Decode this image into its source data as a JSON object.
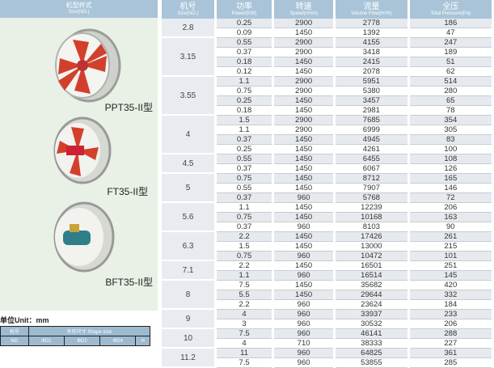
{
  "left": {
    "header_cn": "机型样式",
    "header_en": "Size(NO.)",
    "models": [
      {
        "label": "PPT35-II型"
      },
      {
        "label": "FT35-II型"
      },
      {
        "label": "BFT35-II型"
      }
    ],
    "unit": "单位Unit：mm",
    "shape_table": {
      "col1_cn": "机号",
      "shape_label": "外形尺寸 Shape size",
      "headers": [
        "NO",
        "ΦD1",
        "ΦD2",
        "ΦD4",
        "H"
      ]
    }
  },
  "table": {
    "headers": [
      {
        "cn": "机号",
        "en": "Size(NO.)"
      },
      {
        "cn": "功率",
        "en": "Power(KW)"
      },
      {
        "cn": "转速",
        "en": "Speed(r/min)"
      },
      {
        "cn": "流量",
        "en": "Volume Flow(m³/h)"
      },
      {
        "cn": "全压",
        "en": "Total Pressure(Pa)"
      }
    ],
    "groups": [
      {
        "size": "2.8",
        "rows": [
          [
            "0.25",
            "2900",
            "2778",
            "186"
          ],
          [
            "0.09",
            "1450",
            "1392",
            "47"
          ]
        ]
      },
      {
        "size": "3.15",
        "rows": [
          [
            "0.55",
            "2900",
            "4155",
            "247"
          ],
          [
            "0.37",
            "2900",
            "3418",
            "189"
          ],
          [
            "0.18",
            "1450",
            "2415",
            "51"
          ],
          [
            "0.12",
            "1450",
            "2078",
            "62"
          ]
        ]
      },
      {
        "size": "3.55",
        "rows": [
          [
            "1.1",
            "2900",
            "5951",
            "514"
          ],
          [
            "0.75",
            "2900",
            "5380",
            "280"
          ],
          [
            "0.25",
            "1450",
            "3457",
            "65"
          ],
          [
            "0.18",
            "1450",
            "2981",
            "78"
          ]
        ]
      },
      {
        "size": "4",
        "rows": [
          [
            "1.5",
            "2900",
            "7685",
            "354"
          ],
          [
            "1.1",
            "2900",
            "6999",
            "305"
          ],
          [
            "0.37",
            "1450",
            "4945",
            "83"
          ],
          [
            "0.25",
            "1450",
            "4261",
            "100"
          ]
        ]
      },
      {
        "size": "4.5",
        "rows": [
          [
            "0.55",
            "1450",
            "6455",
            "108"
          ],
          [
            "0.37",
            "1450",
            "6067",
            "126"
          ]
        ]
      },
      {
        "size": "5",
        "rows": [
          [
            "0.75",
            "1450",
            "8712",
            "165"
          ],
          [
            "0.55",
            "1450",
            "7907",
            "146"
          ],
          [
            "0.37",
            "960",
            "5768",
            "72"
          ]
        ]
      },
      {
        "size": "5.6",
        "rows": [
          [
            "1.1",
            "1450",
            "12239",
            "206"
          ],
          [
            "0.75",
            "1450",
            "10168",
            "163"
          ],
          [
            "0.37",
            "960",
            "8103",
            "90"
          ]
        ]
      },
      {
        "size": "6.3",
        "rows": [
          [
            "2.2",
            "1450",
            "17426",
            "261"
          ],
          [
            "1.5",
            "1450",
            "13000",
            "215"
          ],
          [
            "0.75",
            "960",
            "10472",
            "101"
          ]
        ]
      },
      {
        "size": "7.1",
        "rows": [
          [
            "2.2",
            "1450",
            "16501",
            "251"
          ],
          [
            "1.1",
            "960",
            "16514",
            "145"
          ]
        ]
      },
      {
        "size": "8",
        "rows": [
          [
            "7.5",
            "1450",
            "35682",
            "420"
          ],
          [
            "5.5",
            "1450",
            "29644",
            "332"
          ],
          [
            "2.2",
            "960",
            "23624",
            "184"
          ]
        ]
      },
      {
        "size": "9",
        "rows": [
          [
            "4",
            "960",
            "33937",
            "233"
          ],
          [
            "3",
            "960",
            "30532",
            "206"
          ]
        ]
      },
      {
        "size": "10",
        "rows": [
          [
            "7.5",
            "960",
            "46141",
            "288"
          ],
          [
            "4",
            "710",
            "38333",
            "227"
          ]
        ]
      },
      {
        "size": "11.2",
        "rows": [
          [
            "11",
            "960",
            "64825",
            "361"
          ],
          [
            "7.5",
            "960",
            "53855",
            "285"
          ]
        ]
      }
    ]
  }
}
